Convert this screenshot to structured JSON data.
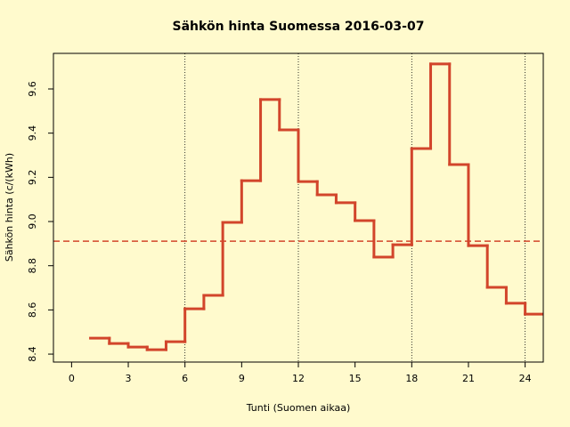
{
  "chart_data": {
    "type": "step",
    "title": "Sähkön hinta Suomessa 2016-03-07",
    "x_label": "Tunti (Suomen aikaa)",
    "y_label": "Sähkön hinta (c/(kWh)",
    "x": [
      1,
      2,
      3,
      4,
      5,
      6,
      7,
      8,
      9,
      10,
      11,
      12,
      13,
      14,
      15,
      16,
      17,
      18,
      19,
      20,
      21,
      22,
      23,
      24
    ],
    "values": [
      8.472,
      8.448,
      8.432,
      8.42,
      8.456,
      8.605,
      8.666,
      8.996,
      9.185,
      9.552,
      9.415,
      9.181,
      9.121,
      9.085,
      9.004,
      8.839,
      8.895,
      9.33,
      9.713,
      9.258,
      8.891,
      8.702,
      8.63,
      8.581
    ],
    "color": "#d2452b",
    "mean_line": {
      "value": 8.911,
      "color": "#d2452b"
    },
    "vlines": [
      6,
      12,
      18,
      24
    ],
    "xlim": [
      -0.96,
      24.96
    ],
    "ylim": [
      8.364,
      9.761
    ],
    "xticks": [
      0,
      3,
      6,
      9,
      12,
      15,
      18,
      21,
      24
    ],
    "yticks": [
      8.4,
      8.6,
      8.8,
      {
        "value": 9.0,
        "label": "9.0"
      },
      9.2,
      9.4,
      9.6
    ]
  }
}
